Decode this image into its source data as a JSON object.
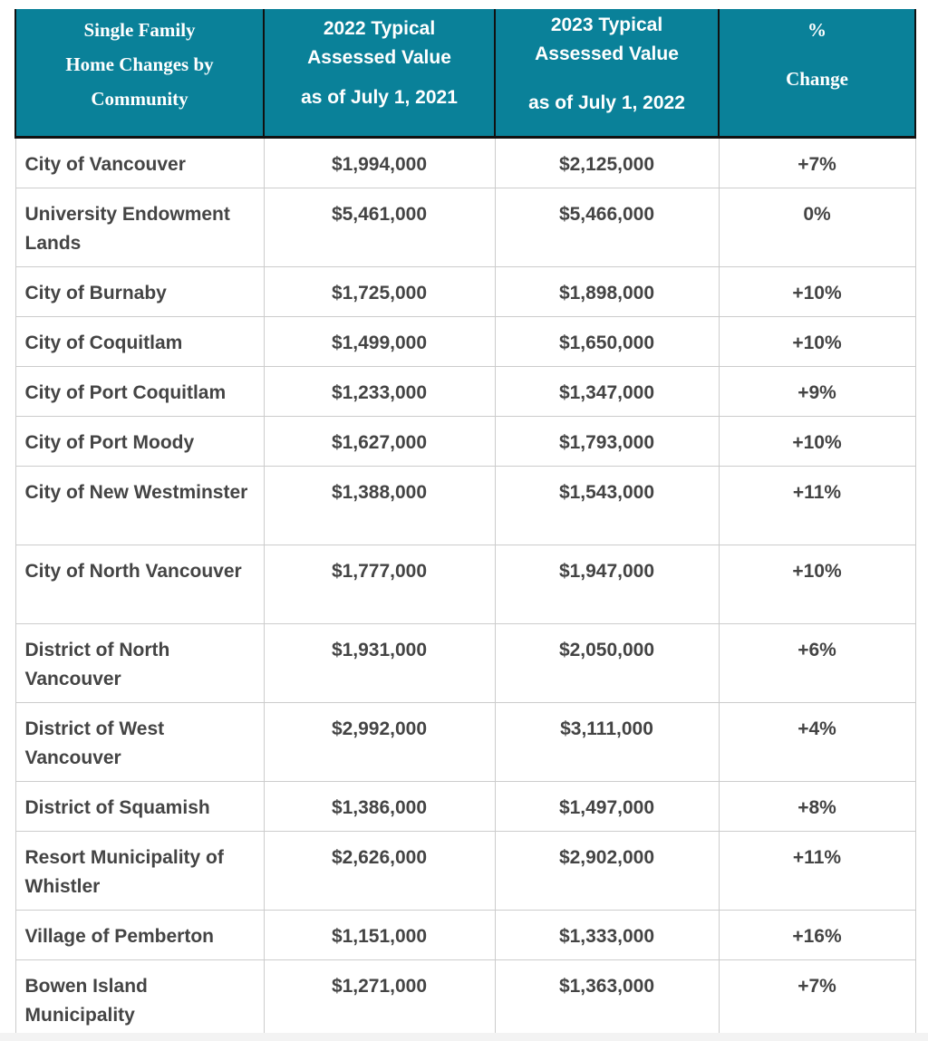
{
  "header": {
    "col1": [
      "Single Family",
      "Home Changes by",
      "Community"
    ],
    "col2": [
      "2022 Typical",
      "Assessed Value",
      "as of July 1, 2021"
    ],
    "col3": [
      "2023 Typical",
      "Assessed Value",
      "as of July 1, 2022"
    ],
    "col4": [
      "%",
      "Change"
    ]
  },
  "rows": [
    {
      "community": "City of Vancouver",
      "v2022": "$1,994,000",
      "v2023": "$2,125,000",
      "change": "+7%"
    },
    {
      "community": "University Endowment Lands",
      "v2022": "$5,461,000",
      "v2023": "$5,466,000",
      "change": "0%"
    },
    {
      "community": "City of Burnaby",
      "v2022": "$1,725,000",
      "v2023": "$1,898,000",
      "change": "+10%"
    },
    {
      "community": "City of Coquitlam",
      "v2022": "$1,499,000",
      "v2023": "$1,650,000",
      "change": "+10%"
    },
    {
      "community": "City of Port Coquitlam",
      "v2022": "$1,233,000",
      "v2023": "$1,347,000",
      "change": "+9%"
    },
    {
      "community": "City of Port Moody",
      "v2022": "$1,627,000",
      "v2023": "$1,793,000",
      "change": "+10%"
    },
    {
      "community": "City of New Westminster",
      "v2022": "$1,388,000",
      "v2023": "$1,543,000",
      "change": "+11%"
    },
    {
      "community": "City of North Vancouver",
      "v2022": "$1,777,000",
      "v2023": "$1,947,000",
      "change": "+10%"
    },
    {
      "community": "District of North Vancouver",
      "v2022": "$1,931,000",
      "v2023": "$2,050,000",
      "change": "+6%"
    },
    {
      "community": "District of West Vancouver",
      "v2022": "$2,992,000",
      "v2023": "$3,111,000",
      "change": "+4%"
    },
    {
      "community": "District of Squamish",
      "v2022": "$1,386,000",
      "v2023": "$1,497,000",
      "change": "+8%"
    },
    {
      "community": "Resort Municipality of Whistler",
      "v2022": "$2,626,000",
      "v2023": "$2,902,000",
      "change": "+11%"
    },
    {
      "community": "Village of Pemberton",
      "v2022": "$1,151,000",
      "v2023": "$1,333,000",
      "change": "+16%"
    },
    {
      "community": "Bowen Island Municipality",
      "v2022": "$1,271,000",
      "v2023": "$1,363,000",
      "change": "+7%"
    }
  ],
  "colors": {
    "header_bg": "#0a8199",
    "text": "#444444"
  }
}
